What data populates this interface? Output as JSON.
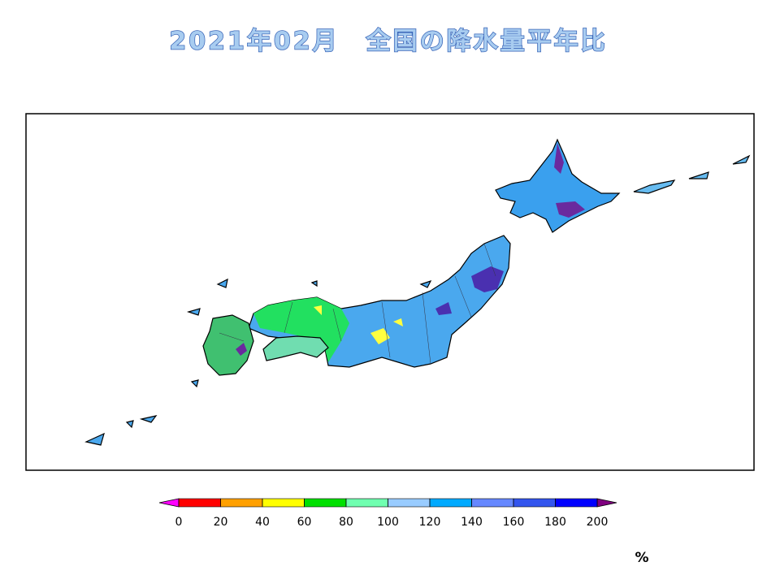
{
  "title": "2021年02月　全国の降水量平年比",
  "colorbar": {
    "ticks": [
      0,
      20,
      40,
      60,
      80,
      100,
      120,
      140,
      160,
      180,
      200
    ],
    "colors": [
      "#ff0000",
      "#ffa000",
      "#ffff00",
      "#00e000",
      "#70ffb0",
      "#99ccff",
      "#00aaff",
      "#6688ff",
      "#3355ee",
      "#0000ff"
    ],
    "under_color": "#ff00ff",
    "over_color": "#800080",
    "unit": "%"
  }
}
